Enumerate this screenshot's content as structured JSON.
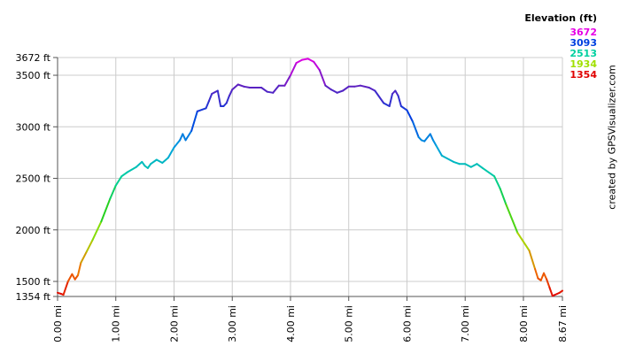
{
  "legend": {
    "title": "Elevation (ft)",
    "items": [
      {
        "label": "3672",
        "color": "#e600e6"
      },
      {
        "label": "3093",
        "color": "#0040e0"
      },
      {
        "label": "2513",
        "color": "#00d0a0"
      },
      {
        "label": "1934",
        "color": "#a0e000"
      },
      {
        "label": "1354",
        "color": "#e00000"
      }
    ]
  },
  "credit": "created by GPSVisualizer.com",
  "chart_data": {
    "type": "line",
    "title": "",
    "xlabel": "",
    "ylabel": "",
    "xlim": [
      0,
      8.67
    ],
    "ylim": [
      1354,
      3672
    ],
    "grid": true,
    "x_ticks": [
      {
        "value": 0,
        "label": "0.00 mi"
      },
      {
        "value": 1,
        "label": "1.00 mi"
      },
      {
        "value": 2,
        "label": "2.00 mi"
      },
      {
        "value": 3,
        "label": "3.00 mi"
      },
      {
        "value": 4,
        "label": "4.00 mi"
      },
      {
        "value": 5,
        "label": "5.00 mi"
      },
      {
        "value": 6,
        "label": "6.00 mi"
      },
      {
        "value": 7,
        "label": "7.00 mi"
      },
      {
        "value": 8,
        "label": "8.00 mi"
      },
      {
        "value": 8.67,
        "label": "8.67 mi"
      }
    ],
    "y_ticks": [
      {
        "value": 1354,
        "label": "1354 ft"
      },
      {
        "value": 1500,
        "label": "1500 ft"
      },
      {
        "value": 2000,
        "label": "2000 ft"
      },
      {
        "value": 2500,
        "label": "2500 ft"
      },
      {
        "value": 3000,
        "label": "3000 ft"
      },
      {
        "value": 3500,
        "label": "3500 ft"
      },
      {
        "value": 3672,
        "label": "3672 ft"
      }
    ],
    "color_scale": [
      {
        "value": 1354,
        "color": "#e00000"
      },
      {
        "value": 1600,
        "color": "#f07000"
      },
      {
        "value": 1934,
        "color": "#a0e000"
      },
      {
        "value": 2200,
        "color": "#20d020"
      },
      {
        "value": 2513,
        "color": "#00d0a0"
      },
      {
        "value": 2800,
        "color": "#00a0e0"
      },
      {
        "value": 3093,
        "color": "#0040e0"
      },
      {
        "value": 3400,
        "color": "#6020c0"
      },
      {
        "value": 3672,
        "color": "#e600e6"
      }
    ],
    "series": [
      {
        "x": [
          0,
          0.06,
          0.1,
          0.18,
          0.25,
          0.3,
          0.35,
          0.4,
          0.5,
          0.6,
          0.75,
          0.9,
          1.0,
          1.1,
          1.2,
          1.35,
          1.45,
          1.5,
          1.55,
          1.6,
          1.7,
          1.8,
          1.9,
          2.0,
          2.1,
          2.15,
          2.2,
          2.3,
          2.4,
          2.55,
          2.6,
          2.65,
          2.75,
          2.8,
          2.85,
          2.9,
          2.95,
          3.0,
          3.1,
          3.2,
          3.3,
          3.5,
          3.6,
          3.7,
          3.8,
          3.9,
          4.0,
          4.1,
          4.2,
          4.3,
          4.4,
          4.5,
          4.6,
          4.7,
          4.8,
          4.9,
          5.0,
          5.1,
          5.2,
          5.35,
          5.45,
          5.6,
          5.7,
          5.75,
          5.8,
          5.85,
          5.9,
          6.0,
          6.1,
          6.2,
          6.25,
          6.3,
          6.4,
          6.45,
          6.5,
          6.6,
          6.8,
          6.9,
          7.0,
          7.1,
          7.2,
          7.3,
          7.5,
          7.6,
          7.7,
          7.9,
          8.1,
          8.2,
          8.25,
          8.3,
          8.35,
          8.4,
          8.45,
          8.5,
          8.58,
          8.62,
          8.67
        ],
        "y": [
          1390,
          1380,
          1370,
          1500,
          1570,
          1520,
          1560,
          1680,
          1790,
          1900,
          2080,
          2300,
          2430,
          2520,
          2560,
          2610,
          2660,
          2620,
          2600,
          2640,
          2680,
          2650,
          2700,
          2800,
          2870,
          2930,
          2870,
          2960,
          3150,
          3180,
          3250,
          3320,
          3350,
          3200,
          3200,
          3230,
          3300,
          3360,
          3410,
          3390,
          3380,
          3380,
          3340,
          3330,
          3400,
          3400,
          3500,
          3620,
          3650,
          3660,
          3630,
          3550,
          3400,
          3360,
          3330,
          3350,
          3390,
          3390,
          3400,
          3380,
          3350,
          3230,
          3200,
          3320,
          3350,
          3300,
          3200,
          3160,
          3050,
          2900,
          2870,
          2860,
          2930,
          2870,
          2820,
          2720,
          2660,
          2640,
          2640,
          2610,
          2640,
          2600,
          2520,
          2400,
          2250,
          1970,
          1800,
          1620,
          1530,
          1510,
          1580,
          1520,
          1440,
          1360,
          1380,
          1390,
          1410
        ]
      }
    ]
  }
}
